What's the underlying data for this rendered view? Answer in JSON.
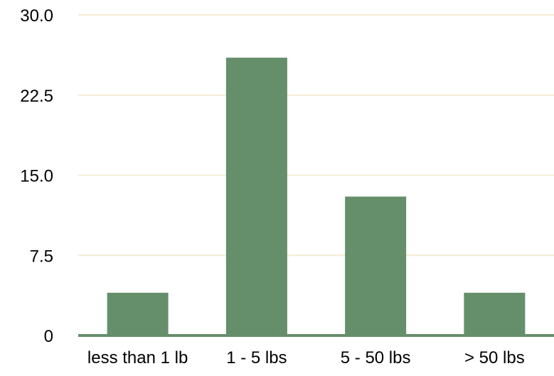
{
  "chart_data": {
    "type": "bar",
    "categories": [
      "less than 1 lb",
      "1 - 5 lbs",
      "5 - 50 lbs",
      "> 50 lbs"
    ],
    "values": [
      4,
      26,
      13,
      4
    ],
    "ylim": [
      0,
      30
    ],
    "yticks": [
      "0",
      "7.5",
      "15.0",
      "22.5",
      "30.0"
    ],
    "ytick_values": [
      0,
      7.5,
      15,
      22.5,
      30
    ],
    "grid": true,
    "colors": {
      "bar": "#658f6b",
      "grid": "#f5ecd4",
      "baseline": "#658f6b",
      "text": "#000000"
    }
  }
}
